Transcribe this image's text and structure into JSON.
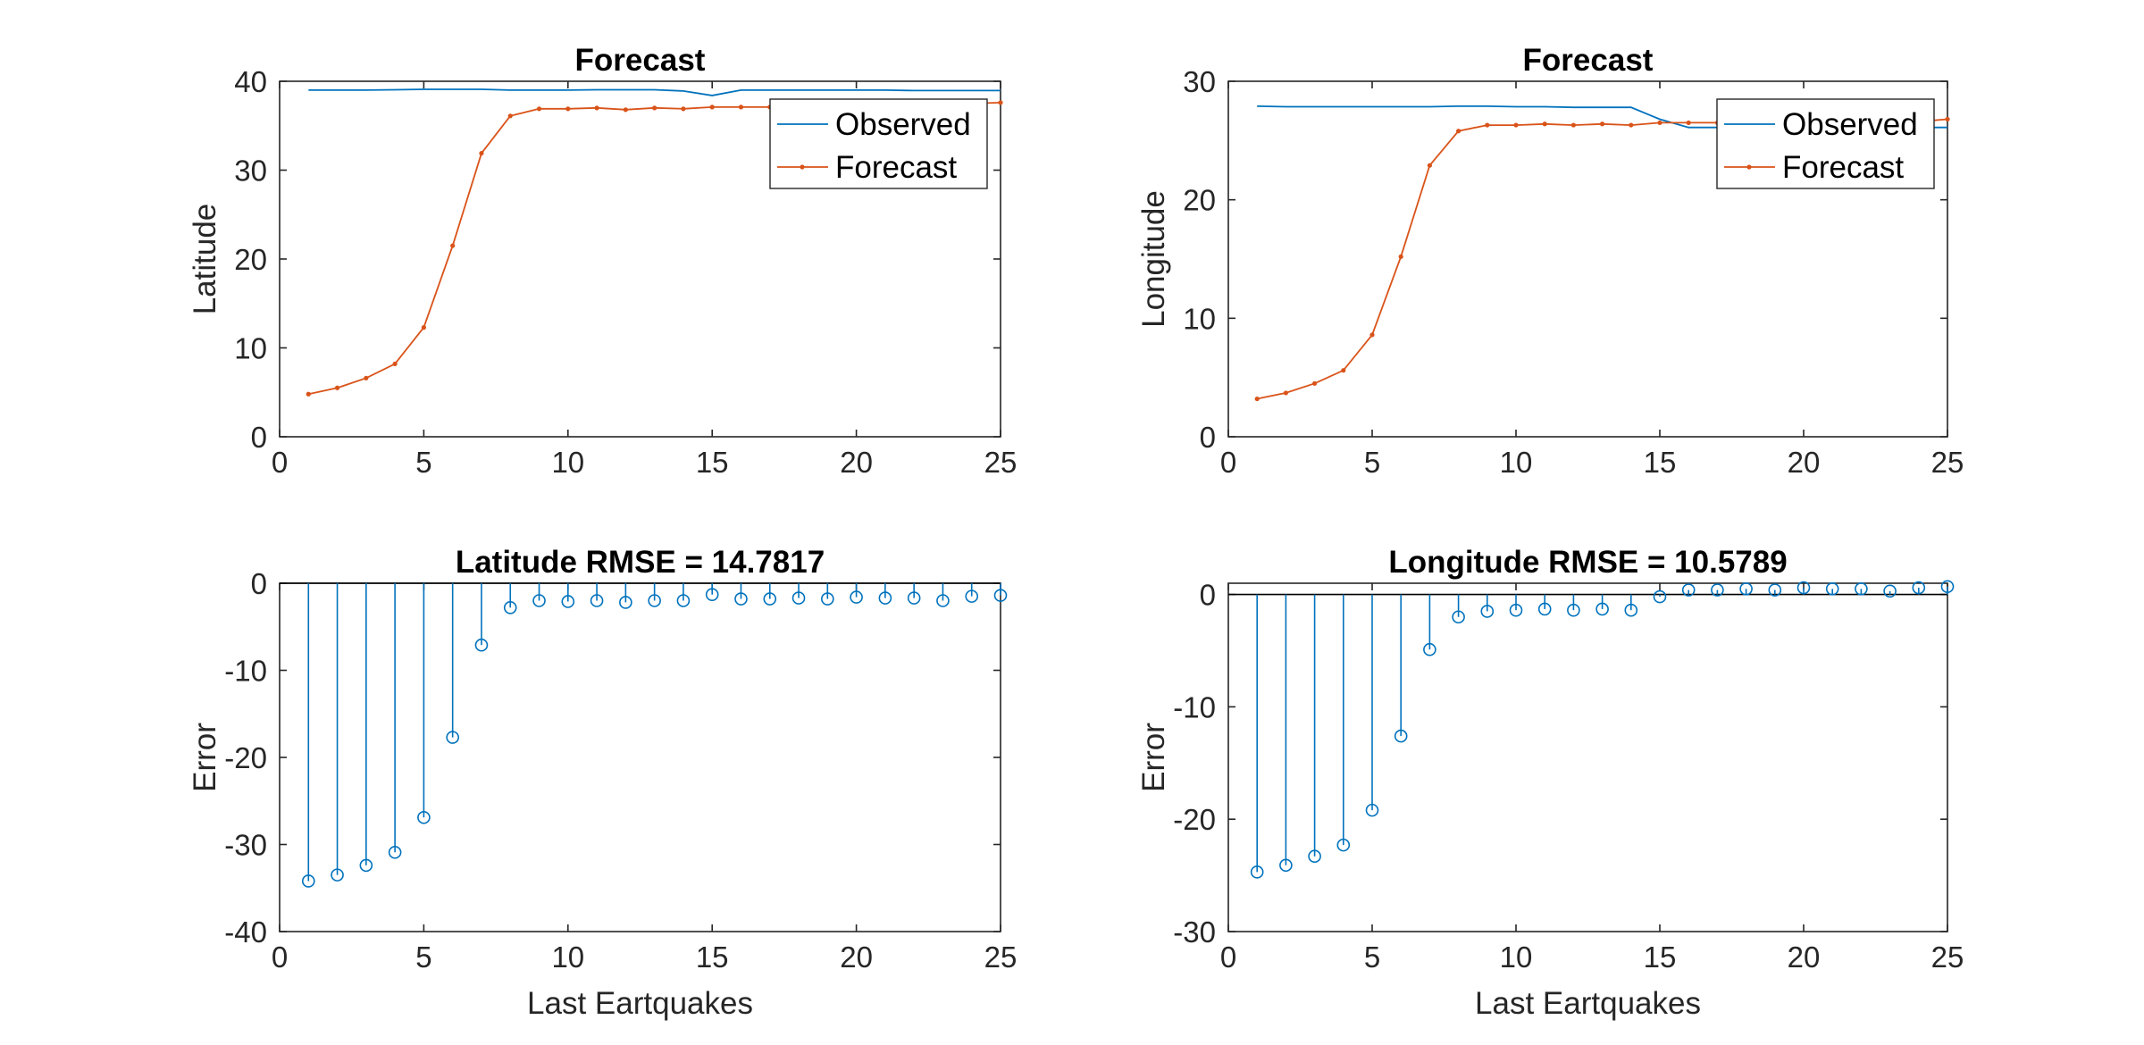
{
  "colors": {
    "observed": "#0072bd",
    "forecast": "#d95319",
    "stem": "#0072bd",
    "axis": "#262626"
  },
  "chart_data": [
    {
      "type": "line",
      "title": "Forecast",
      "xlabel": "",
      "ylabel": "Latitude",
      "xlim": [
        0,
        25
      ],
      "ylim": [
        0,
        40
      ],
      "xticks": [
        0,
        5,
        10,
        15,
        20,
        25
      ],
      "yticks": [
        0,
        10,
        20,
        30,
        40
      ],
      "legend": {
        "location": "top-right",
        "entries": [
          "Observed",
          "Forecast"
        ]
      },
      "x": [
        1,
        2,
        3,
        4,
        5,
        6,
        7,
        8,
        9,
        10,
        11,
        12,
        13,
        14,
        15,
        16,
        17,
        18,
        19,
        20,
        21,
        22,
        23,
        24,
        25
      ],
      "series": [
        {
          "name": "Observed",
          "marker": "none",
          "values": [
            39.0,
            39.0,
            39.0,
            39.05,
            39.1,
            39.1,
            39.1,
            39.0,
            39.0,
            39.0,
            39.05,
            39.05,
            39.05,
            38.9,
            38.4,
            39.0,
            39.0,
            39.0,
            39.0,
            39.0,
            39.0,
            38.95,
            38.95,
            38.95,
            38.95
          ]
        },
        {
          "name": "Forecast",
          "marker": "dot",
          "values": [
            4.8,
            5.5,
            6.6,
            8.2,
            12.3,
            21.5,
            31.9,
            36.1,
            36.9,
            36.9,
            37.0,
            36.8,
            37.0,
            36.9,
            37.1,
            37.1,
            37.1,
            37.2,
            37.2,
            37.3,
            37.3,
            37.4,
            37.4,
            37.5,
            37.6
          ]
        }
      ]
    },
    {
      "type": "line",
      "title": "Forecast",
      "xlabel": "",
      "ylabel": "Longitude",
      "xlim": [
        0,
        25
      ],
      "ylim": [
        0,
        30
      ],
      "xticks": [
        0,
        5,
        10,
        15,
        20,
        25
      ],
      "yticks": [
        0,
        10,
        20,
        30
      ],
      "legend": {
        "location": "top-right",
        "entries": [
          "Observed",
          "Forecast"
        ]
      },
      "x": [
        1,
        2,
        3,
        4,
        5,
        6,
        7,
        8,
        9,
        10,
        11,
        12,
        13,
        14,
        15,
        16,
        17,
        18,
        19,
        20,
        21,
        22,
        23,
        24,
        25
      ],
      "series": [
        {
          "name": "Observed",
          "marker": "none",
          "values": [
            27.9,
            27.85,
            27.85,
            27.85,
            27.85,
            27.85,
            27.85,
            27.9,
            27.9,
            27.85,
            27.85,
            27.8,
            27.8,
            27.8,
            26.8,
            26.1,
            26.1,
            26.1,
            26.1,
            26.1,
            26.1,
            26.1,
            26.1,
            26.1,
            26.1
          ]
        },
        {
          "name": "Forecast",
          "marker": "dot",
          "values": [
            3.2,
            3.7,
            4.5,
            5.6,
            8.6,
            15.2,
            22.9,
            25.8,
            26.3,
            26.3,
            26.4,
            26.3,
            26.4,
            26.3,
            26.5,
            26.5,
            26.5,
            26.5,
            26.5,
            26.6,
            26.6,
            26.6,
            26.6,
            26.6,
            26.8
          ]
        }
      ]
    },
    {
      "type": "stem",
      "title": "Latitude RMSE = 14.7817",
      "xlabel": "Last Eartquakes",
      "ylabel": "Error",
      "xlim": [
        0,
        25
      ],
      "ylim": [
        -40,
        0
      ],
      "xticks": [
        0,
        5,
        10,
        15,
        20,
        25
      ],
      "yticks": [
        -40,
        -30,
        -20,
        -10,
        0
      ],
      "x": [
        1,
        2,
        3,
        4,
        5,
        6,
        7,
        8,
        9,
        10,
        11,
        12,
        13,
        14,
        15,
        16,
        17,
        18,
        19,
        20,
        21,
        22,
        23,
        24,
        25
      ],
      "values": [
        -34.2,
        -33.5,
        -32.4,
        -30.9,
        -26.9,
        -17.7,
        -7.1,
        -2.8,
        -2.0,
        -2.1,
        -2.0,
        -2.2,
        -2.0,
        -2.0,
        -1.3,
        -1.8,
        -1.8,
        -1.7,
        -1.8,
        -1.6,
        -1.7,
        -1.7,
        -2.0,
        -1.5,
        -1.4
      ]
    },
    {
      "type": "stem",
      "title": "Longitude RMSE = 10.5789",
      "xlabel": "Last Eartquakes",
      "ylabel": "Error",
      "xlim": [
        0,
        25
      ],
      "ylim": [
        -30,
        1
      ],
      "xticks": [
        0,
        5,
        10,
        15,
        20,
        25
      ],
      "yticks": [
        -30,
        -20,
        -10,
        0
      ],
      "x": [
        1,
        2,
        3,
        4,
        5,
        6,
        7,
        8,
        9,
        10,
        11,
        12,
        13,
        14,
        15,
        16,
        17,
        18,
        19,
        20,
        21,
        22,
        23,
        24,
        25
      ],
      "values": [
        -24.7,
        -24.1,
        -23.3,
        -22.3,
        -19.2,
        -12.6,
        -4.9,
        -2.0,
        -1.5,
        -1.4,
        -1.3,
        -1.4,
        -1.3,
        -1.4,
        -0.2,
        0.4,
        0.4,
        0.5,
        0.4,
        0.6,
        0.5,
        0.5,
        0.3,
        0.6,
        0.7
      ]
    }
  ]
}
